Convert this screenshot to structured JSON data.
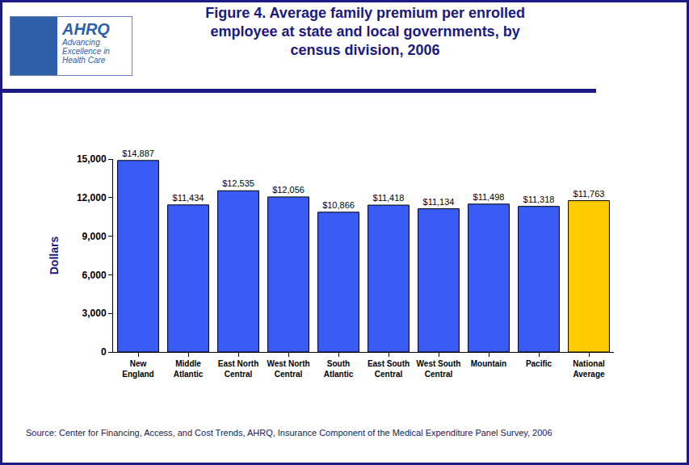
{
  "chart_data": {
    "type": "bar",
    "title": "Figure 4. Average family premium per enrolled employee at state and local governments, by census division, 2006",
    "y_label": "Dollars",
    "categories": [
      "New England",
      "Middle Atlantic",
      "East North Central",
      "West North Central",
      "South Atlantic",
      "East South Central",
      "West South Central",
      "Mountain",
      "Pacific",
      "National Average"
    ],
    "values": [
      14887,
      11434,
      12535,
      12056,
      10866,
      11418,
      11134,
      11498,
      11318,
      11763
    ],
    "value_labels": [
      "$14,887",
      "$11,434",
      "$12,535",
      "$12,056",
      "$10,866",
      "$11,418",
      "$11,134",
      "$11,498",
      "$11,318",
      "$11,763"
    ],
    "data_labels": true,
    "colors": [
      "#3a5cf5",
      "#3a5cf5",
      "#3a5cf5",
      "#3a5cf5",
      "#3a5cf5",
      "#3a5cf5",
      "#3a5cf5",
      "#3a5cf5",
      "#3a5cf5",
      "#ffcc00"
    ],
    "ylim": [
      0,
      15000
    ],
    "yticks": [
      0,
      {
        "value": 3000,
        "label": "3,000"
      },
      {
        "value": 6000,
        "label": "6,000"
      },
      {
        "value": 9000,
        "label": "9,000"
      },
      {
        "value": 12000,
        "label": "12,000"
      },
      {
        "value": 15000,
        "label": "15,000"
      }
    ],
    "grid": false,
    "source": "Source: Center for Financing, Access, and Cost Trends, AHRQ, Insurance Component of the Medical Expenditure Panel Survey, 2006",
    "logo": [
      "AHRQ",
      "Advancing Excellence in Health Care"
    ]
  }
}
